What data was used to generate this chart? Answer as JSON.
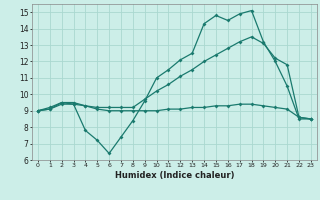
{
  "xlabel": "Humidex (Indice chaleur)",
  "bg_color": "#cceee8",
  "grid_color": "#aad8d0",
  "line_color": "#1a7a6e",
  "xlim": [
    -0.5,
    23.5
  ],
  "ylim": [
    6,
    15.5
  ],
  "xticks": [
    0,
    1,
    2,
    3,
    4,
    5,
    6,
    7,
    8,
    9,
    10,
    11,
    12,
    13,
    14,
    15,
    16,
    17,
    18,
    19,
    20,
    21,
    22,
    23
  ],
  "yticks": [
    6,
    7,
    8,
    9,
    10,
    11,
    12,
    13,
    14,
    15
  ],
  "line1_x": [
    0,
    1,
    2,
    3,
    4,
    5,
    6,
    7,
    8,
    9,
    10,
    11,
    12,
    13,
    14,
    15,
    16,
    17,
    18,
    19,
    20,
    21,
    22,
    23
  ],
  "line1_y": [
    9.0,
    9.2,
    9.5,
    9.4,
    7.8,
    7.2,
    6.4,
    7.4,
    8.4,
    9.6,
    11.0,
    11.5,
    12.1,
    12.5,
    14.3,
    14.8,
    14.5,
    14.9,
    15.1,
    13.2,
    12.0,
    10.5,
    8.5,
    8.5
  ],
  "line2_x": [
    0,
    1,
    2,
    3,
    4,
    5,
    6,
    7,
    8,
    9,
    10,
    11,
    12,
    13,
    14,
    15,
    16,
    17,
    18,
    19,
    20,
    21,
    22,
    23
  ],
  "line2_y": [
    9.0,
    9.1,
    9.5,
    9.5,
    9.3,
    9.2,
    9.2,
    9.2,
    9.2,
    9.7,
    10.2,
    10.6,
    11.1,
    11.5,
    12.0,
    12.4,
    12.8,
    13.2,
    13.5,
    13.1,
    12.2,
    11.8,
    8.6,
    8.5
  ],
  "line3_x": [
    0,
    1,
    2,
    3,
    4,
    5,
    6,
    7,
    8,
    9,
    10,
    11,
    12,
    13,
    14,
    15,
    16,
    17,
    18,
    19,
    20,
    21,
    22,
    23
  ],
  "line3_y": [
    9.0,
    9.1,
    9.4,
    9.4,
    9.3,
    9.1,
    9.0,
    9.0,
    9.0,
    9.0,
    9.0,
    9.1,
    9.1,
    9.2,
    9.2,
    9.3,
    9.3,
    9.4,
    9.4,
    9.3,
    9.2,
    9.1,
    8.6,
    8.5
  ]
}
